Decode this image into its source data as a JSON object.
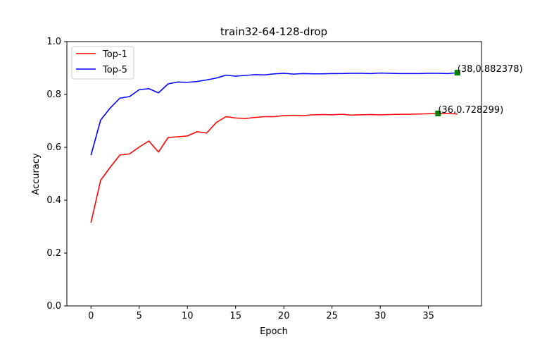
{
  "chart_data": {
    "type": "line",
    "title": "train32-64-128-drop",
    "xlabel": "Epoch",
    "ylabel": "Accuracy",
    "xlim": [
      -2.5,
      40.5
    ],
    "ylim": [
      0.0,
      1.0
    ],
    "xticks": [
      0,
      5,
      10,
      15,
      20,
      25,
      30,
      35
    ],
    "yticks": [
      0.0,
      0.2,
      0.4,
      0.6,
      0.8,
      1.0
    ],
    "xtick_labels": [
      "0",
      "5",
      "10",
      "15",
      "20",
      "25",
      "30",
      "35"
    ],
    "ytick_labels": [
      "0.0",
      "0.2",
      "0.4",
      "0.6",
      "0.8",
      "1.0"
    ],
    "grid": false,
    "legend_position": "top-left",
    "x": [
      0,
      1,
      2,
      3,
      4,
      5,
      6,
      7,
      8,
      9,
      10,
      11,
      12,
      13,
      14,
      15,
      16,
      17,
      18,
      19,
      20,
      21,
      22,
      23,
      24,
      25,
      26,
      27,
      28,
      29,
      30,
      31,
      32,
      33,
      34,
      35,
      36,
      37,
      38
    ],
    "series": [
      {
        "name": "Top-1",
        "color": "#ff0000",
        "values": [
          0.315,
          0.475,
          0.525,
          0.571,
          0.575,
          0.601,
          0.624,
          0.582,
          0.637,
          0.64,
          0.643,
          0.659,
          0.654,
          0.694,
          0.716,
          0.711,
          0.709,
          0.713,
          0.716,
          0.716,
          0.72,
          0.721,
          0.72,
          0.723,
          0.724,
          0.723,
          0.725,
          0.722,
          0.723,
          0.724,
          0.723,
          0.724,
          0.725,
          0.725,
          0.726,
          0.727,
          0.728,
          0.728,
          0.726
        ]
      },
      {
        "name": "Top-5",
        "color": "#0000ff",
        "values": [
          0.57,
          0.703,
          0.749,
          0.786,
          0.792,
          0.818,
          0.822,
          0.806,
          0.84,
          0.847,
          0.846,
          0.849,
          0.855,
          0.862,
          0.873,
          0.869,
          0.872,
          0.875,
          0.874,
          0.878,
          0.88,
          0.877,
          0.879,
          0.878,
          0.878,
          0.879,
          0.879,
          0.88,
          0.88,
          0.879,
          0.881,
          0.88,
          0.879,
          0.879,
          0.879,
          0.88,
          0.88,
          0.879,
          0.882
        ]
      }
    ],
    "annotations": [
      {
        "x": 36,
        "y": 0.728299,
        "label": "(36,0.728299)",
        "marker_color": "#008000"
      },
      {
        "x": 38,
        "y": 0.882378,
        "label": "(38,0.882378)",
        "marker_color": "#008000"
      }
    ]
  }
}
